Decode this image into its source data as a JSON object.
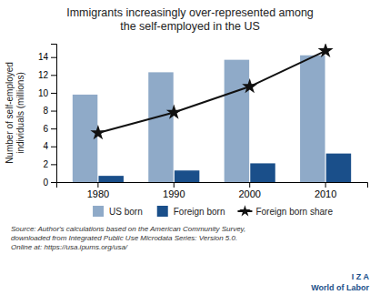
{
  "chart_data": {
    "type": "bar",
    "title": "Immigrants increasingly over-represented among\nthe self-employed in the US",
    "y_label": "Number of self-employed\nindividuals (millions)",
    "categories": [
      "1980",
      "1990",
      "2000",
      "2010"
    ],
    "series": [
      {
        "name": "US born",
        "color": "#8faac8",
        "values": [
          9.8,
          12.3,
          13.7,
          14.2
        ]
      },
      {
        "name": "Foreign born",
        "color": "#1a4f8a",
        "values": [
          0.7,
          1.3,
          2.1,
          3.2
        ]
      },
      {
        "name": "Foreign born share",
        "type": "line",
        "color": "#111111",
        "marker": "star",
        "values": [
          5.5,
          7.8,
          10.7,
          14.7
        ]
      }
    ],
    "ylim": [
      0,
      15.5
    ],
    "yticks": [
      0,
      2,
      4,
      6,
      8,
      10,
      12,
      14
    ],
    "grid": false,
    "legend": "bottom",
    "annotations": [
      "Source: Author's calculations based on the American Community Survey,\ndownloaded from Integrated Public Use Microdata Series: Version 5.0.\nOnline at: https://usa.ipums.org/usa/",
      "I Z A",
      "World of Labor"
    ]
  }
}
